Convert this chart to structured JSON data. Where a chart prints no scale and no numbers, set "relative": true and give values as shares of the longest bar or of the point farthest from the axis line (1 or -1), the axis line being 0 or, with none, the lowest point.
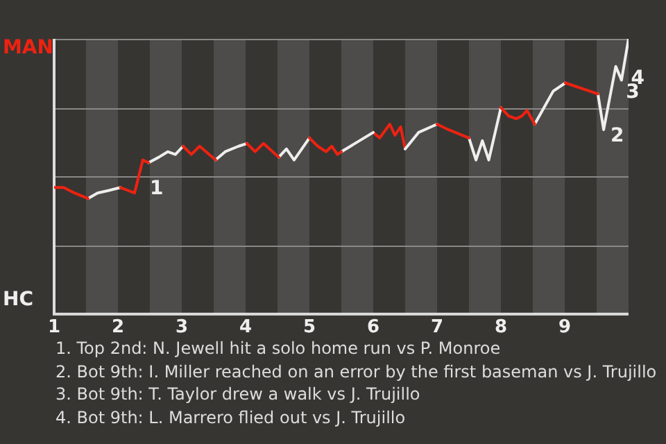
{
  "chart_data": {
    "type": "line",
    "relative": true,
    "grid": "y",
    "marker": "none",
    "line_style": "solid",
    "x": [
      1,
      1.15,
      1.32,
      1.53,
      1.68,
      1.87,
      2.04,
      2.15,
      2.26,
      2.39,
      2.48,
      2.64,
      2.78,
      2.9,
      3.02,
      3.15,
      3.28,
      3.53,
      3.68,
      3.89,
      4.02,
      4.15,
      4.28,
      4.52,
      4.64,
      4.76,
      5,
      5.13,
      5.26,
      5.35,
      5.44,
      5.5,
      6,
      6.1,
      6.26,
      6.34,
      6.43,
      6.5,
      6.71,
      7,
      7.18,
      7.5,
      7.61,
      7.71,
      7.81,
      8,
      8.12,
      8.24,
      8.33,
      8.41,
      8.53,
      8.82,
      9.01,
      9.52,
      9.61,
      9.8,
      9.89,
      10
    ],
    "xlim": [
      1,
      10
    ],
    "xticks": [
      1,
      2,
      3,
      4,
      5,
      6,
      7,
      8,
      9
    ],
    "series": [
      {
        "color": "#ee2211",
        "values": [
          0.46,
          0.46,
          0.44,
          0.42,
          null,
          null,
          0.46,
          0.45,
          0.44,
          0.56,
          0.55,
          null,
          null,
          null,
          0.61,
          0.58,
          0.61,
          0.56,
          null,
          null,
          0.62,
          0.59,
          0.62,
          0.57,
          null,
          null,
          0.64,
          0.61,
          0.59,
          0.61,
          0.58,
          0.59,
          null,
          null,
          null,
          null,
          null,
          null,
          null,
          0.69,
          0.67,
          0.64,
          null,
          null,
          null,
          0.75,
          0.72,
          0.71,
          0.72,
          0.74,
          0.69,
          null,
          0.84,
          0.8,
          null,
          null,
          null,
          null
        ]
      },
      {
        "color": "#eeeeee",
        "values": [
          null,
          null,
          null,
          0.42,
          0.44,
          0.45,
          0.46,
          null,
          null,
          null,
          0.55,
          0.57,
          0.59,
          0.58,
          0.61,
          null,
          null,
          0.56,
          0.59,
          0.61,
          0.62,
          null,
          null,
          0.57,
          0.6,
          0.56,
          0.64,
          null,
          null,
          null,
          null,
          0.59,
          0.66,
          null,
          null,
          null,
          null,
          0.6,
          0.66,
          0.69,
          null,
          0.64,
          0.56,
          0.63,
          0.56,
          0.75,
          null,
          null,
          null,
          null,
          0.69,
          0.81,
          0.84,
          null,
          null,
          null,
          null,
          null
        ]
      },
      {
        "color": "#ee2211",
        "values": [
          null,
          null,
          null,
          null,
          null,
          null,
          null,
          null,
          null,
          null,
          null,
          null,
          null,
          null,
          null,
          null,
          null,
          null,
          null,
          null,
          null,
          null,
          null,
          null,
          null,
          null,
          null,
          null,
          null,
          null,
          null,
          null,
          0.66,
          0.64,
          0.69,
          0.65,
          0.68,
          0.6,
          null,
          null,
          null,
          null,
          null,
          null,
          null,
          null,
          null,
          null,
          null,
          null,
          null,
          null,
          null,
          null,
          null,
          null,
          null,
          null
        ]
      },
      {
        "color": "#eeeeee",
        "values": [
          null,
          null,
          null,
          null,
          null,
          null,
          null,
          null,
          null,
          null,
          null,
          null,
          null,
          null,
          null,
          null,
          null,
          null,
          null,
          null,
          null,
          null,
          null,
          null,
          null,
          null,
          null,
          null,
          null,
          null,
          null,
          null,
          null,
          null,
          null,
          null,
          null,
          null,
          null,
          null,
          null,
          null,
          null,
          null,
          null,
          null,
          null,
          null,
          null,
          null,
          null,
          null,
          null,
          0.8,
          0.67,
          0.9,
          0.85,
          1
        ]
      }
    ],
    "bands": [
      {
        "axis": "x",
        "from": 1.5,
        "to": 2,
        "color": "#4d4c4a"
      },
      {
        "axis": "x",
        "from": 2.5,
        "to": 3,
        "color": "#4d4c4a"
      },
      {
        "axis": "x",
        "from": 3.5,
        "to": 4,
        "color": "#4d4c4a"
      },
      {
        "axis": "x",
        "from": 4.5,
        "to": 5,
        "color": "#4d4c4a"
      },
      {
        "axis": "x",
        "from": 5.5,
        "to": 6,
        "color": "#4d4c4a"
      },
      {
        "axis": "x",
        "from": 6.5,
        "to": 7,
        "color": "#4d4c4a"
      },
      {
        "axis": "x",
        "from": 7.5,
        "to": 8,
        "color": "#4d4c4a"
      },
      {
        "axis": "x",
        "from": 8.5,
        "to": 9,
        "color": "#4d4c4a"
      },
      {
        "axis": "x",
        "from": 9.5,
        "to": 10,
        "color": "#4d4c4a"
      }
    ],
    "annotations": [
      "MAN",
      "HC",
      {
        "text": "1",
        "x": 2.39,
        "y": 0.48
      },
      {
        "text": "2",
        "x": 9.61,
        "y": 0.67
      },
      {
        "text": "3",
        "x": 9.85,
        "y": 0.83
      },
      {
        "text": "4",
        "x": 9.93,
        "y": 0.88
      },
      "1. Top 2nd: N. Jewell hit a solo home run vs P. Monroe",
      "2. Bot 9th: I. Miller reached on an error by the first baseman vs J. Trujillo",
      "3. Bot 9th: T. Taylor drew a walk vs J. Trujillo",
      "4. Bot 9th: L. Marrero flied out vs J. Trujillo"
    ]
  }
}
